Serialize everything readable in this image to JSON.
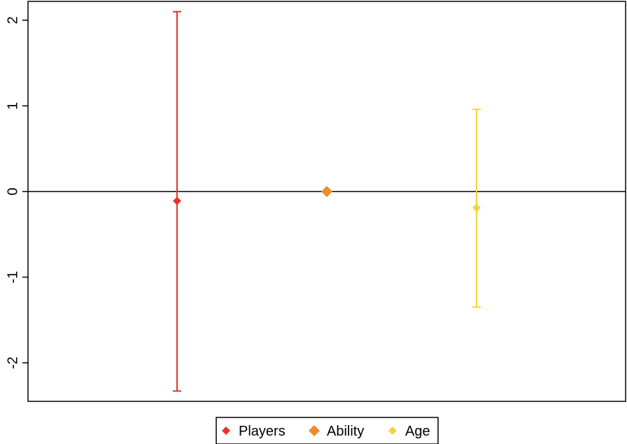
{
  "chart_data": {
    "type": "scatter",
    "title": "",
    "xlabel": "",
    "ylabel": "",
    "ylim": [
      -2.45,
      2.22
    ],
    "yticks": [
      -2,
      -1,
      0,
      1,
      2
    ],
    "ytick_labels": [
      "-2",
      "-1",
      "0",
      "1",
      "2"
    ],
    "reference_line_y": 0,
    "grid": false,
    "legend_position": "bottom",
    "series": [
      {
        "name": "Players",
        "x": 1,
        "y": -0.11,
        "lower": -2.33,
        "upper": 2.1,
        "color": "#e8332a"
      },
      {
        "name": "Ability",
        "x": 2,
        "y": 0.0,
        "lower": null,
        "upper": null,
        "color": "#ef8a2e"
      },
      {
        "name": "Age",
        "x": 3,
        "y": -0.19,
        "lower": -1.35,
        "upper": 0.96,
        "color": "#f2d43e"
      }
    ]
  }
}
